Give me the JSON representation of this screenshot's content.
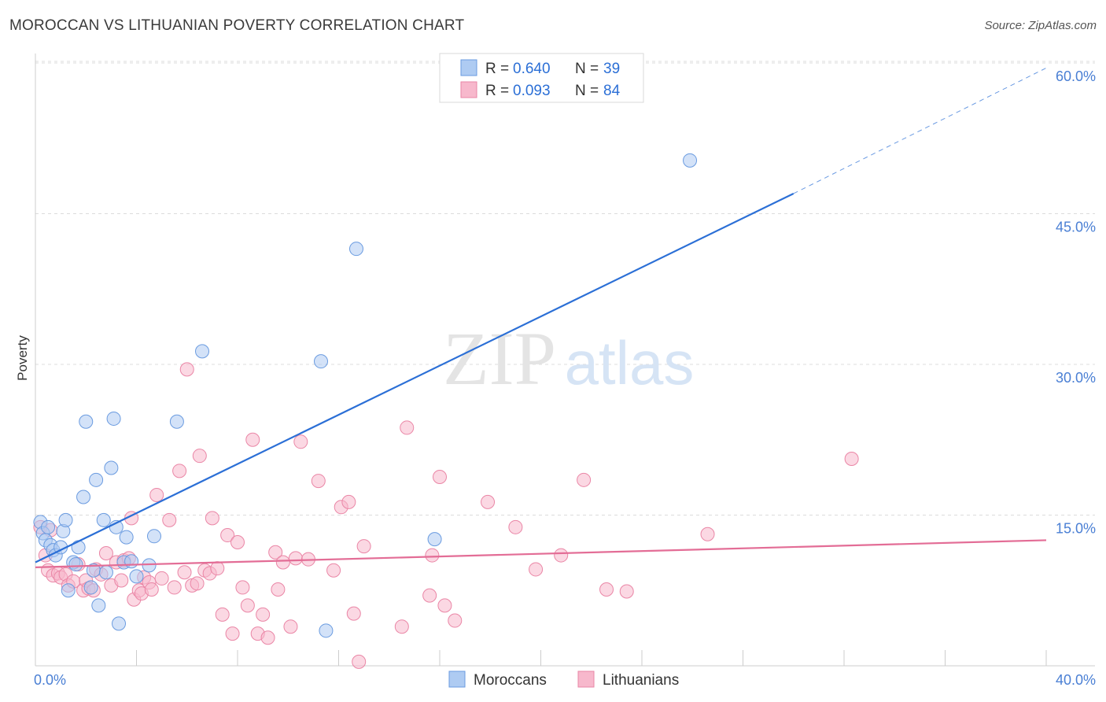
{
  "title": "MOROCCAN VS LITHUANIAN POVERTY CORRELATION CHART",
  "source": "Source: ZipAtlas.com",
  "watermark": {
    "zip": "ZIP",
    "atlas": "atlas"
  },
  "legend_top": [
    {
      "r_label": "R =",
      "r_value": "0.640",
      "n_label": "N =",
      "n_value": "39",
      "color": "#aecbf2"
    },
    {
      "r_label": "R =",
      "r_value": "0.093",
      "n_label": "N =",
      "n_value": "84",
      "color": "#f7b8cc"
    }
  ],
  "chart_data": {
    "type": "scatter",
    "title": "MOROCCAN VS LITHUANIAN POVERTY CORRELATION CHART",
    "ylabel": "Poverty",
    "xlabel": "",
    "xlim": [
      0,
      40
    ],
    "ylim": [
      0,
      60
    ],
    "x_ticks": [
      "0.0%",
      "40.0%"
    ],
    "y_ticks": [
      {
        "value": 15,
        "label": "15.0%"
      },
      {
        "value": 30,
        "label": "30.0%"
      },
      {
        "value": 45,
        "label": "45.0%"
      },
      {
        "value": 60,
        "label": "60.0%"
      }
    ],
    "grid": true,
    "legend_position": "bottom",
    "series": [
      {
        "name": "Moroccans",
        "color": "#aecbf2",
        "stroke": "#6a9be0",
        "line_color": "#2b6fd6",
        "trend": {
          "x0": 0,
          "y0": 10.3,
          "x1": 30,
          "y1": 47.0,
          "dash_x1": 40,
          "dash_y1": 59.5
        },
        "points": [
          [
            0.2,
            14.3
          ],
          [
            0.3,
            13.2
          ],
          [
            0.4,
            12.5
          ],
          [
            0.5,
            13.8
          ],
          [
            0.6,
            12.0
          ],
          [
            0.7,
            11.5
          ],
          [
            0.8,
            11.0
          ],
          [
            1.0,
            11.8
          ],
          [
            1.1,
            13.4
          ],
          [
            1.2,
            14.5
          ],
          [
            1.3,
            7.5
          ],
          [
            1.5,
            10.3
          ],
          [
            1.6,
            10.1
          ],
          [
            1.7,
            11.8
          ],
          [
            1.9,
            16.8
          ],
          [
            2.0,
            24.3
          ],
          [
            2.2,
            7.8
          ],
          [
            2.3,
            9.5
          ],
          [
            2.4,
            18.5
          ],
          [
            2.5,
            6.0
          ],
          [
            2.7,
            14.5
          ],
          [
            2.8,
            9.3
          ],
          [
            3.0,
            19.7
          ],
          [
            3.1,
            24.6
          ],
          [
            3.2,
            13.8
          ],
          [
            3.3,
            4.2
          ],
          [
            3.5,
            10.3
          ],
          [
            3.6,
            12.8
          ],
          [
            3.8,
            10.4
          ],
          [
            4.0,
            8.9
          ],
          [
            4.5,
            10.0
          ],
          [
            4.7,
            12.9
          ],
          [
            5.6,
            24.3
          ],
          [
            6.6,
            31.3
          ],
          [
            11.3,
            30.3
          ],
          [
            11.5,
            3.5
          ],
          [
            12.7,
            41.5
          ],
          [
            15.8,
            12.6
          ],
          [
            25.9,
            50.3
          ]
        ]
      },
      {
        "name": "Lithuanians",
        "color": "#f7b8cc",
        "stroke": "#ea86a6",
        "line_color": "#e36d96",
        "trend": {
          "x0": 0,
          "y0": 9.8,
          "x1": 40,
          "y1": 12.5
        },
        "points": [
          [
            0.2,
            13.8
          ],
          [
            0.4,
            11.0
          ],
          [
            0.5,
            9.5
          ],
          [
            0.6,
            13.5
          ],
          [
            0.7,
            9.0
          ],
          [
            0.9,
            9.2
          ],
          [
            1.0,
            8.8
          ],
          [
            1.2,
            9.1
          ],
          [
            1.3,
            8.0
          ],
          [
            1.5,
            8.4
          ],
          [
            1.7,
            10.1
          ],
          [
            1.9,
            7.5
          ],
          [
            2.0,
            8.5
          ],
          [
            2.1,
            7.7
          ],
          [
            2.3,
            7.5
          ],
          [
            2.4,
            9.6
          ],
          [
            2.6,
            9.1
          ],
          [
            2.8,
            11.2
          ],
          [
            3.0,
            8.0
          ],
          [
            3.2,
            10.3
          ],
          [
            3.4,
            8.5
          ],
          [
            3.5,
            10.5
          ],
          [
            3.7,
            10.7
          ],
          [
            3.8,
            14.7
          ],
          [
            3.9,
            6.6
          ],
          [
            4.1,
            7.5
          ],
          [
            4.2,
            7.2
          ],
          [
            4.3,
            8.8
          ],
          [
            4.5,
            8.3
          ],
          [
            4.6,
            7.6
          ],
          [
            4.8,
            17.0
          ],
          [
            5.0,
            8.7
          ],
          [
            5.3,
            14.5
          ],
          [
            5.5,
            7.8
          ],
          [
            5.7,
            19.4
          ],
          [
            5.9,
            9.3
          ],
          [
            6.0,
            29.5
          ],
          [
            6.2,
            8.0
          ],
          [
            6.4,
            8.2
          ],
          [
            6.5,
            20.9
          ],
          [
            6.7,
            9.5
          ],
          [
            6.9,
            9.2
          ],
          [
            7.0,
            14.7
          ],
          [
            7.2,
            9.7
          ],
          [
            7.4,
            5.1
          ],
          [
            7.6,
            13.0
          ],
          [
            7.8,
            3.2
          ],
          [
            8.0,
            12.3
          ],
          [
            8.2,
            7.8
          ],
          [
            8.4,
            6.0
          ],
          [
            8.6,
            22.5
          ],
          [
            8.8,
            3.2
          ],
          [
            9.0,
            5.1
          ],
          [
            9.2,
            2.8
          ],
          [
            9.5,
            11.3
          ],
          [
            9.6,
            7.6
          ],
          [
            9.8,
            10.3
          ],
          [
            10.1,
            3.9
          ],
          [
            10.3,
            10.7
          ],
          [
            10.5,
            22.3
          ],
          [
            10.8,
            10.6
          ],
          [
            11.2,
            18.4
          ],
          [
            11.8,
            9.5
          ],
          [
            12.1,
            15.8
          ],
          [
            12.4,
            16.3
          ],
          [
            12.6,
            5.2
          ],
          [
            12.8,
            0.4
          ],
          [
            13.0,
            11.9
          ],
          [
            14.5,
            3.9
          ],
          [
            14.7,
            23.7
          ],
          [
            15.6,
            7.0
          ],
          [
            15.7,
            11.0
          ],
          [
            16.0,
            18.8
          ],
          [
            16.2,
            6.0
          ],
          [
            16.6,
            4.5
          ],
          [
            17.9,
            16.3
          ],
          [
            19.0,
            13.8
          ],
          [
            19.8,
            9.6
          ],
          [
            20.8,
            11.0
          ],
          [
            21.7,
            18.5
          ],
          [
            22.6,
            7.6
          ],
          [
            23.4,
            7.4
          ],
          [
            26.6,
            13.1
          ],
          [
            32.3,
            20.6
          ]
        ]
      }
    ]
  }
}
